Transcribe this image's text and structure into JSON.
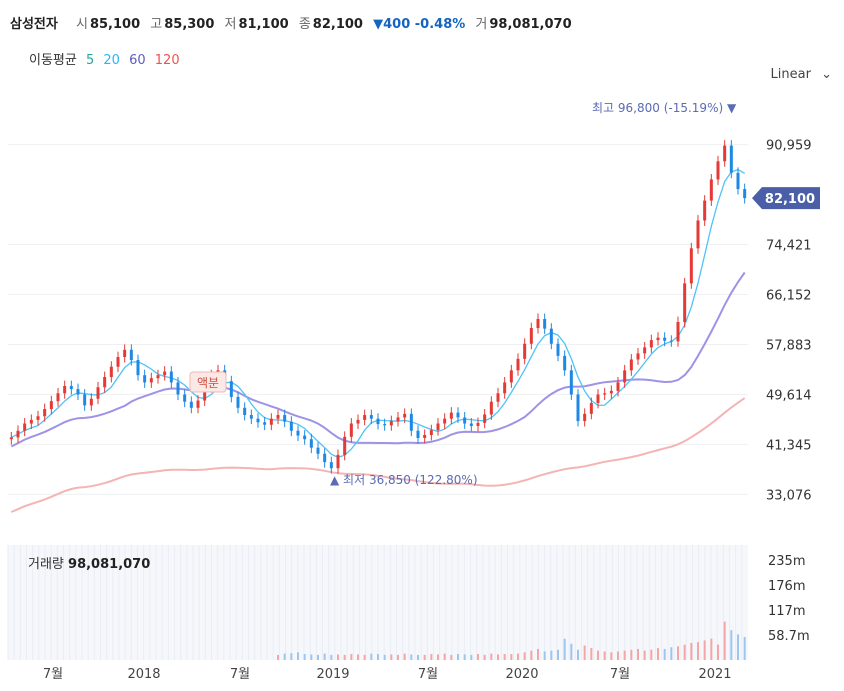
{
  "header": {
    "name": "삼성전자",
    "open_label": "시",
    "open": "85,100",
    "high_label": "고",
    "high": "85,300",
    "low_label": "저",
    "low": "81,100",
    "close_label": "종",
    "close": "82,100",
    "change": "▼400 -0.48%",
    "volume_label": "거",
    "volume": "98,081,070"
  },
  "ma_legend": {
    "title": "이동평균",
    "items": [
      {
        "label": "5",
        "color": "#26a69a"
      },
      {
        "label": "20",
        "color": "#29b6f6"
      },
      {
        "label": "60",
        "color": "#5c5cc4"
      },
      {
        "label": "120",
        "color": "#ef5350"
      }
    ]
  },
  "scale_select": {
    "value": "Linear",
    "icon": "chevron-down-icon"
  },
  "volume_panel": {
    "label": "거래량",
    "value": "98,081,070"
  },
  "annotations": {
    "high": "최고 96,800 (-15.19%)",
    "low": "최저 36,850 (122.80%)",
    "event": "액분",
    "price_tag": "82,100"
  },
  "chart_data": {
    "type": "candlestick",
    "x_ticks": [
      "7월",
      "2018",
      "7월",
      "2019",
      "7월",
      "2020",
      "7월",
      "2021"
    ],
    "y_ticks": [
      33076,
      41345,
      49614,
      57883,
      66152,
      74421,
      90959
    ],
    "y_tick_labels": [
      "33,076",
      "41,345",
      "49,614",
      "57,883",
      "66,152",
      "74,421",
      "90,959"
    ],
    "ylim": [
      28000,
      100000
    ],
    "volume_ticks": [
      "58.7m",
      "117m",
      "176m",
      "235m"
    ],
    "volume_ylim": [
      0,
      270
    ],
    "colors": {
      "up": "#e53935",
      "down": "#1e88e5",
      "ma5": "#26a69a",
      "ma20": "#4fc3f7",
      "ma60": "#9e93e6",
      "ma120": "#f4b4b4"
    },
    "closes": [
      42500,
      43600,
      44800,
      45400,
      46000,
      47200,
      48500,
      49800,
      51000,
      50500,
      49600,
      47800,
      48900,
      50800,
      52500,
      54200,
      55800,
      57000,
      55300,
      52800,
      51600,
      52300,
      52800,
      53400,
      51600,
      49600,
      48400,
      47400,
      48600,
      50800,
      52800,
      53600,
      51800,
      49200,
      47400,
      46200,
      45600,
      45000,
      44600,
      45600,
      46200,
      45100,
      43600,
      42800,
      42200,
      40800,
      39800,
      38400,
      37400,
      39600,
      42600,
      44800,
      45400,
      46200,
      45600,
      44700,
      44500,
      45200,
      45800,
      46400,
      43600,
      42400,
      42900,
      43700,
      44800,
      45600,
      46600,
      45800,
      44800,
      44400,
      44900,
      46300,
      48400,
      49800,
      51600,
      53600,
      55500,
      58000,
      60600,
      62100,
      60500,
      58000,
      56000,
      53600,
      49600,
      45200,
      46400,
      48200,
      49600,
      49800,
      50200,
      51600,
      53600,
      55400,
      56400,
      57400,
      58600,
      59000,
      58500,
      58400,
      61600,
      68000,
      73800,
      78400,
      81700,
      85200,
      88200,
      90800,
      86300,
      83600,
      82100
    ],
    "volumes": [
      0,
      0,
      0,
      0,
      0,
      0,
      0,
      0,
      0,
      0,
      0,
      0,
      0,
      0,
      0,
      0,
      0,
      0,
      0,
      0,
      0,
      0,
      0,
      0,
      0,
      0,
      0,
      0,
      0,
      0,
      0,
      0,
      0,
      0,
      0,
      0,
      0,
      0,
      0,
      0,
      12,
      15,
      16,
      18,
      14,
      13,
      12,
      15,
      12,
      13,
      12,
      14,
      13,
      12,
      15,
      14,
      12,
      13,
      12,
      15,
      13,
      12,
      12,
      14,
      13,
      15,
      12,
      14,
      13,
      12,
      14,
      12,
      15,
      13,
      14,
      14,
      15,
      18,
      22,
      26,
      20,
      22,
      24,
      50,
      38,
      24,
      34,
      28,
      22,
      20,
      18,
      20,
      22,
      24,
      26,
      22,
      24,
      28,
      26,
      30,
      32,
      36,
      40,
      42,
      46,
      50,
      36,
      90,
      70,
      60,
      54
    ]
  }
}
